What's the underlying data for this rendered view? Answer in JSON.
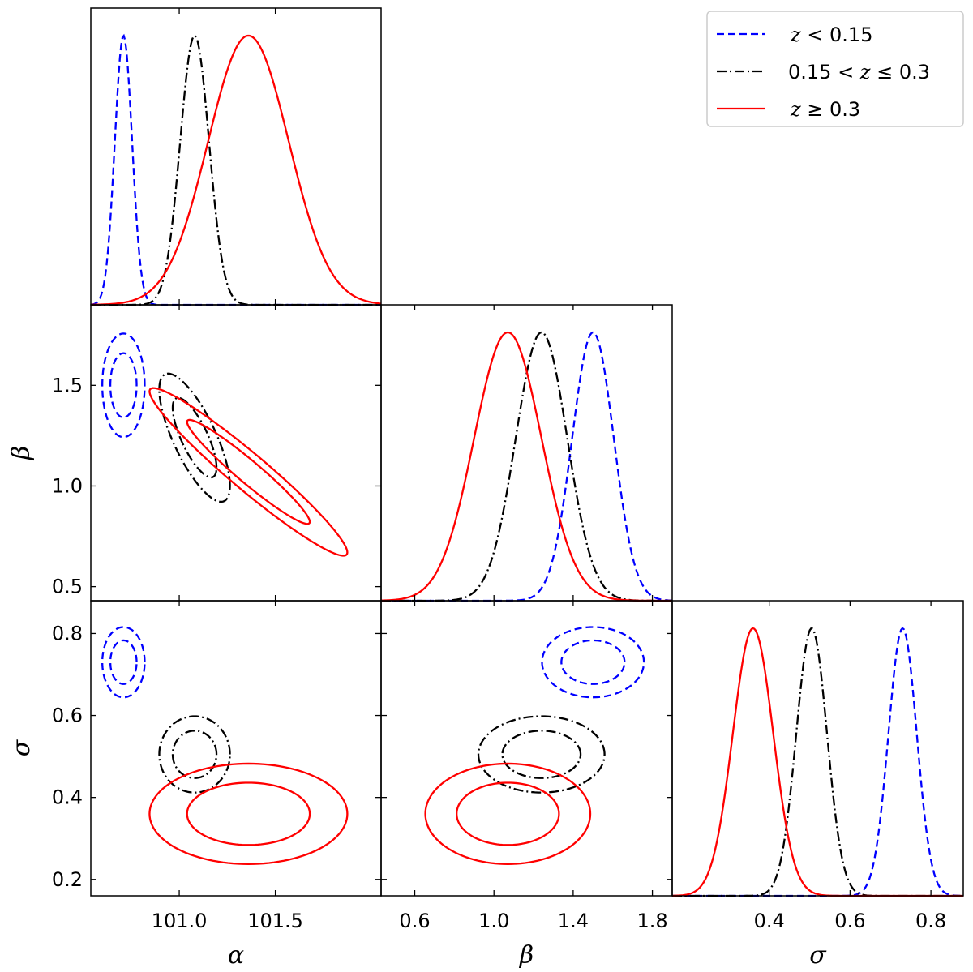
{
  "chart_data": {
    "type": "corner",
    "parameters": [
      "α",
      "β",
      "σ"
    ],
    "axis_labels": {
      "alpha": "α",
      "beta": "β",
      "sigma": "σ"
    },
    "ranges": {
      "alpha": [
        100.54,
        102.05
      ],
      "beta": [
        0.43,
        1.9
      ],
      "sigma": [
        0.16,
        0.88
      ]
    },
    "ticks": {
      "alpha_x": [
        {
          "v": 101.0,
          "label": "101.0"
        },
        {
          "v": 101.5,
          "label": "101.5"
        }
      ],
      "beta_x": [
        {
          "v": 0.6,
          "label": "0.6"
        },
        {
          "v": 1.0,
          "label": "1.0"
        },
        {
          "v": 1.4,
          "label": "1.4"
        },
        {
          "v": 1.8,
          "label": "1.8"
        }
      ],
      "sigma_x": [
        {
          "v": 0.4,
          "label": "0.4"
        },
        {
          "v": 0.6,
          "label": "0.6"
        },
        {
          "v": 0.8,
          "label": "0.8"
        }
      ],
      "beta_y": [
        {
          "v": 0.5,
          "label": "0.5"
        },
        {
          "v": 1.0,
          "label": "1.0"
        },
        {
          "v": 1.5,
          "label": "1.5"
        }
      ],
      "sigma_y": [
        {
          "v": 0.2,
          "label": "0.2"
        },
        {
          "v": 0.4,
          "label": "0.4"
        },
        {
          "v": 0.6,
          "label": "0.6"
        },
        {
          "v": 0.8,
          "label": "0.8"
        }
      ]
    },
    "legend_position": "top-right",
    "series": [
      {
        "name": "z < 0.15",
        "legend_text": [
          {
            "t": "z",
            "it": true
          },
          {
            "t": " < 0.15",
            "it": false
          }
        ],
        "color": "#0000ff",
        "linestyle": "dashed",
        "alpha": {
          "mean": 100.71,
          "sd": 0.045
        },
        "beta": {
          "mean": 1.5,
          "sd": 0.105
        },
        "sigma": {
          "mean": 0.73,
          "sd": 0.035
        },
        "rho_alpha_beta": 0.0,
        "rho_alpha_sigma": 0.0,
        "rho_beta_sigma": 0.0
      },
      {
        "name": "0.15 < z ≤ 0.3",
        "legend_text": [
          {
            "t": "0.15 < ",
            "it": false
          },
          {
            "t": "z",
            "it": true
          },
          {
            "t": " ≤ 0.3",
            "it": false
          }
        ],
        "color": "#000000",
        "linestyle": "dashdot",
        "alpha": {
          "mean": 101.08,
          "sd": 0.075
        },
        "beta": {
          "mean": 1.24,
          "sd": 0.13
        },
        "sigma": {
          "mean": 0.505,
          "sd": 0.038
        },
        "rho_alpha_beta": -0.75,
        "rho_alpha_sigma": 0.0,
        "rho_beta_sigma": 0.0
      },
      {
        "name": "z ≥ 0.3",
        "legend_text": [
          {
            "t": "z",
            "it": true
          },
          {
            "t": " ≥ 0.3",
            "it": false
          }
        ],
        "color": "#ff0000",
        "linestyle": "solid",
        "alpha": {
          "mean": 101.36,
          "sd": 0.21
        },
        "beta": {
          "mean": 1.07,
          "sd": 0.17
        },
        "sigma": {
          "mean": 0.36,
          "sd": 0.05
        },
        "rho_alpha_beta": -0.96,
        "rho_alpha_sigma": 0.0,
        "rho_beta_sigma": 0.0
      }
    ]
  }
}
